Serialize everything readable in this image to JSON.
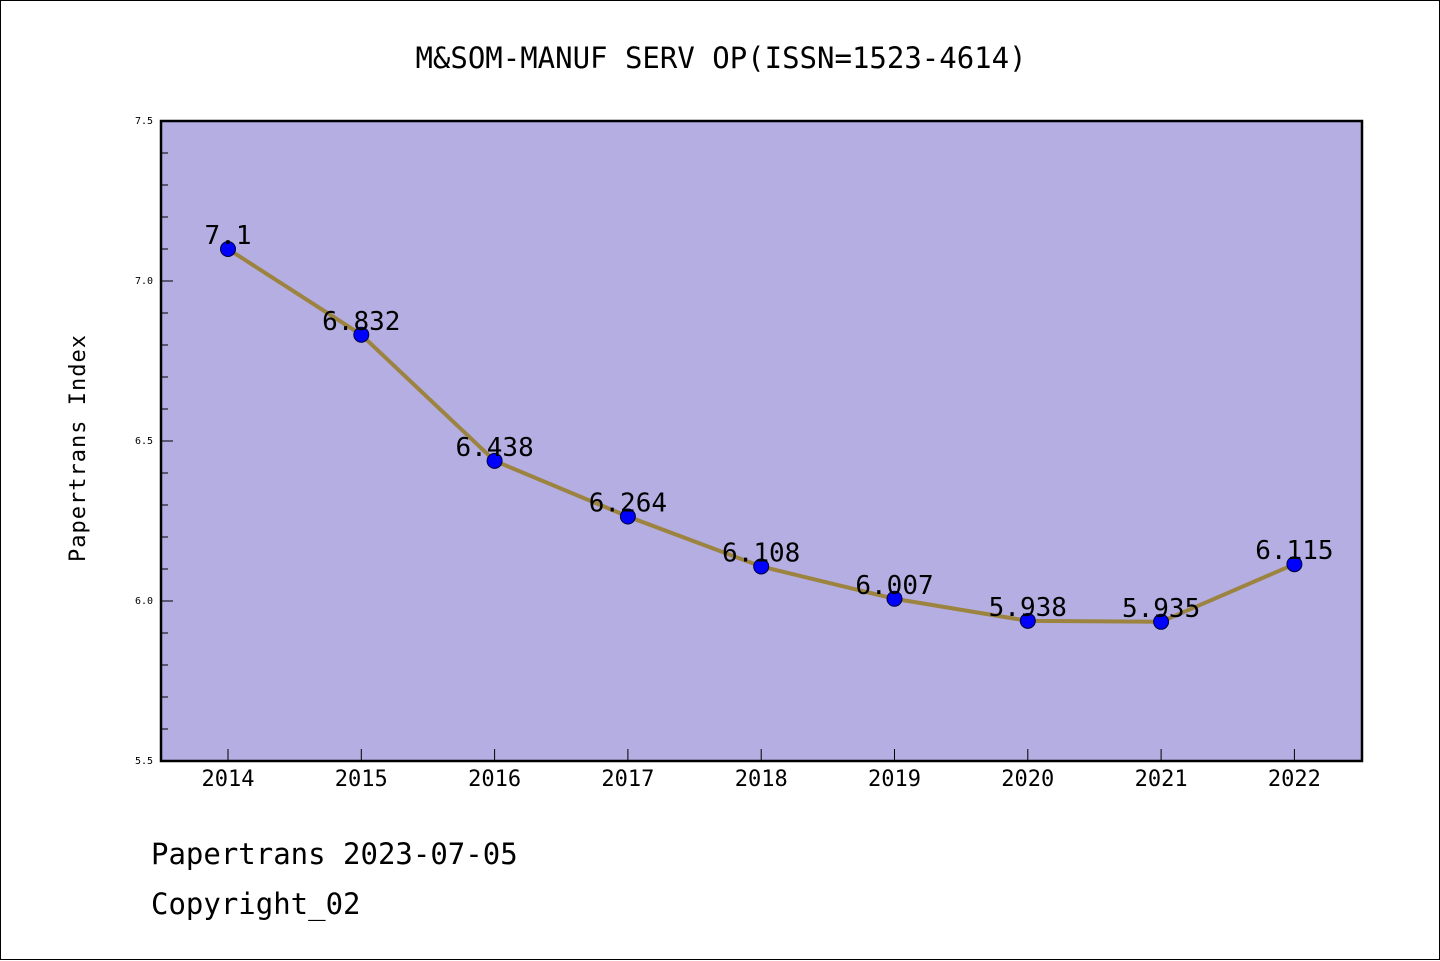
{
  "chart_data": {
    "type": "line",
    "title": "M&SOM-MANUF SERV OP(ISSN=1523-4614)",
    "xlabel": "",
    "ylabel": "Papertrans Index",
    "categories": [
      "2014",
      "2015",
      "2016",
      "2017",
      "2018",
      "2019",
      "2020",
      "2021",
      "2022"
    ],
    "series": [
      {
        "values": [
          7.1,
          6.832,
          6.438,
          6.264,
          6.108,
          6.007,
          5.938,
          5.935,
          6.115
        ],
        "labels": [
          "7.1",
          "6.832",
          "6.438",
          "6.264",
          "6.108",
          "6.007",
          "5.938",
          "5.935",
          "6.115"
        ]
      }
    ],
    "ylim": [
      5.5,
      7.5
    ],
    "yticks": [
      "5.5",
      "6.0",
      "6.5",
      "7.0",
      "7.5"
    ],
    "grid": false,
    "colors": {
      "plot_background": "#b4aee2",
      "line": "#9c8440",
      "marker": "#0000ff"
    }
  },
  "footer": {
    "line1": "Papertrans 2023-07-05",
    "line2": "Copyright_02"
  }
}
